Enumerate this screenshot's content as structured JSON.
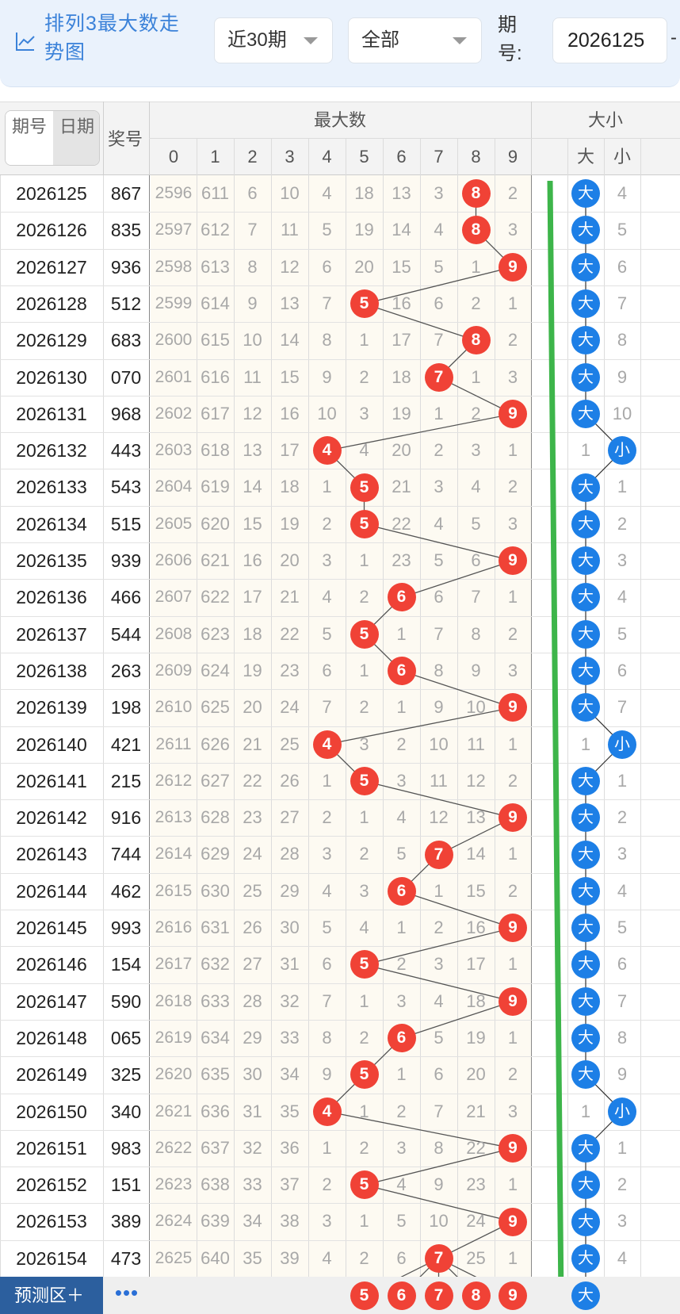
{
  "header": {
    "title": "排列3最大数走势图",
    "range_select": "近30期",
    "filter_select": "全部",
    "period_label": "期号:",
    "issue_value": "2026125",
    "range_separator": "-"
  },
  "table_header": {
    "sort_by_issue": "期号",
    "sort_by_date": "日期",
    "prize_col": "奖号",
    "max_group": "最大数",
    "max_digits": [
      "0",
      "1",
      "2",
      "3",
      "4",
      "5",
      "6",
      "7",
      "8",
      "9"
    ],
    "size_group": "大小",
    "size_cols": [
      "大",
      "小"
    ]
  },
  "rows": [
    {
      "issue": "2026125",
      "prize": "867",
      "max": 8,
      "miss": [
        2596,
        611,
        6,
        10,
        4,
        18,
        13,
        3,
        null,
        2
      ],
      "size": "大",
      "size_miss": 4
    },
    {
      "issue": "2026126",
      "prize": "835",
      "max": 8,
      "miss": [
        2597,
        612,
        7,
        11,
        5,
        19,
        14,
        4,
        null,
        3
      ],
      "size": "大",
      "size_miss": 5
    },
    {
      "issue": "2026127",
      "prize": "936",
      "max": 9,
      "miss": [
        2598,
        613,
        8,
        12,
        6,
        20,
        15,
        5,
        1,
        null
      ],
      "size": "大",
      "size_miss": 6
    },
    {
      "issue": "2026128",
      "prize": "512",
      "max": 5,
      "miss": [
        2599,
        614,
        9,
        13,
        7,
        null,
        16,
        6,
        2,
        1
      ],
      "size": "大",
      "size_miss": 7
    },
    {
      "issue": "2026129",
      "prize": "683",
      "max": 8,
      "miss": [
        2600,
        615,
        10,
        14,
        8,
        1,
        17,
        7,
        null,
        2
      ],
      "size": "大",
      "size_miss": 8
    },
    {
      "issue": "2026130",
      "prize": "070",
      "max": 7,
      "miss": [
        2601,
        616,
        11,
        15,
        9,
        2,
        18,
        null,
        1,
        3
      ],
      "size": "大",
      "size_miss": 9
    },
    {
      "issue": "2026131",
      "prize": "968",
      "max": 9,
      "miss": [
        2602,
        617,
        12,
        16,
        10,
        3,
        19,
        1,
        2,
        null
      ],
      "size": "大",
      "size_miss": 10
    },
    {
      "issue": "2026132",
      "prize": "443",
      "max": 4,
      "miss": [
        2603,
        618,
        13,
        17,
        null,
        4,
        20,
        2,
        3,
        1
      ],
      "size": "小",
      "size_miss": 1
    },
    {
      "issue": "2026133",
      "prize": "543",
      "max": 5,
      "miss": [
        2604,
        619,
        14,
        18,
        1,
        null,
        21,
        3,
        4,
        2
      ],
      "size": "大",
      "size_miss": 1
    },
    {
      "issue": "2026134",
      "prize": "515",
      "max": 5,
      "miss": [
        2605,
        620,
        15,
        19,
        2,
        null,
        22,
        4,
        5,
        3
      ],
      "size": "大",
      "size_miss": 2
    },
    {
      "issue": "2026135",
      "prize": "939",
      "max": 9,
      "miss": [
        2606,
        621,
        16,
        20,
        3,
        1,
        23,
        5,
        6,
        null
      ],
      "size": "大",
      "size_miss": 3
    },
    {
      "issue": "2026136",
      "prize": "466",
      "max": 6,
      "miss": [
        2607,
        622,
        17,
        21,
        4,
        2,
        null,
        6,
        7,
        1
      ],
      "size": "大",
      "size_miss": 4
    },
    {
      "issue": "2026137",
      "prize": "544",
      "max": 5,
      "miss": [
        2608,
        623,
        18,
        22,
        5,
        null,
        1,
        7,
        8,
        2
      ],
      "size": "大",
      "size_miss": 5
    },
    {
      "issue": "2026138",
      "prize": "263",
      "max": 6,
      "miss": [
        2609,
        624,
        19,
        23,
        6,
        1,
        null,
        8,
        9,
        3
      ],
      "size": "大",
      "size_miss": 6
    },
    {
      "issue": "2026139",
      "prize": "198",
      "max": 9,
      "miss": [
        2610,
        625,
        20,
        24,
        7,
        2,
        1,
        9,
        10,
        null
      ],
      "size": "大",
      "size_miss": 7
    },
    {
      "issue": "2026140",
      "prize": "421",
      "max": 4,
      "miss": [
        2611,
        626,
        21,
        25,
        null,
        3,
        2,
        10,
        11,
        1
      ],
      "size": "小",
      "size_miss": 1
    },
    {
      "issue": "2026141",
      "prize": "215",
      "max": 5,
      "miss": [
        2612,
        627,
        22,
        26,
        1,
        null,
        3,
        11,
        12,
        2
      ],
      "size": "大",
      "size_miss": 1
    },
    {
      "issue": "2026142",
      "prize": "916",
      "max": 9,
      "miss": [
        2613,
        628,
        23,
        27,
        2,
        1,
        4,
        12,
        13,
        null
      ],
      "size": "大",
      "size_miss": 2
    },
    {
      "issue": "2026143",
      "prize": "744",
      "max": 7,
      "miss": [
        2614,
        629,
        24,
        28,
        3,
        2,
        5,
        null,
        14,
        1
      ],
      "size": "大",
      "size_miss": 3
    },
    {
      "issue": "2026144",
      "prize": "462",
      "max": 6,
      "miss": [
        2615,
        630,
        25,
        29,
        4,
        3,
        null,
        1,
        15,
        2
      ],
      "size": "大",
      "size_miss": 4
    },
    {
      "issue": "2026145",
      "prize": "993",
      "max": 9,
      "miss": [
        2616,
        631,
        26,
        30,
        5,
        4,
        1,
        2,
        16,
        null
      ],
      "size": "大",
      "size_miss": 5
    },
    {
      "issue": "2026146",
      "prize": "154",
      "max": 5,
      "miss": [
        2617,
        632,
        27,
        31,
        6,
        null,
        2,
        3,
        17,
        1
      ],
      "size": "大",
      "size_miss": 6
    },
    {
      "issue": "2026147",
      "prize": "590",
      "max": 9,
      "miss": [
        2618,
        633,
        28,
        32,
        7,
        1,
        3,
        4,
        18,
        null
      ],
      "size": "大",
      "size_miss": 7
    },
    {
      "issue": "2026148",
      "prize": "065",
      "max": 6,
      "miss": [
        2619,
        634,
        29,
        33,
        8,
        2,
        null,
        5,
        19,
        1
      ],
      "size": "大",
      "size_miss": 8
    },
    {
      "issue": "2026149",
      "prize": "325",
      "max": 5,
      "miss": [
        2620,
        635,
        30,
        34,
        9,
        null,
        1,
        6,
        20,
        2
      ],
      "size": "大",
      "size_miss": 9
    },
    {
      "issue": "2026150",
      "prize": "340",
      "max": 4,
      "miss": [
        2621,
        636,
        31,
        35,
        null,
        1,
        2,
        7,
        21,
        3
      ],
      "size": "小",
      "size_miss": 1
    },
    {
      "issue": "2026151",
      "prize": "983",
      "max": 9,
      "miss": [
        2622,
        637,
        32,
        36,
        1,
        2,
        3,
        8,
        22,
        null
      ],
      "size": "大",
      "size_miss": 1
    },
    {
      "issue": "2026152",
      "prize": "151",
      "max": 5,
      "miss": [
        2623,
        638,
        33,
        37,
        2,
        null,
        4,
        9,
        23,
        1
      ],
      "size": "大",
      "size_miss": 2
    },
    {
      "issue": "2026153",
      "prize": "389",
      "max": 9,
      "miss": [
        2624,
        639,
        34,
        38,
        3,
        1,
        5,
        10,
        24,
        null
      ],
      "size": "大",
      "size_miss": 3
    },
    {
      "issue": "2026154",
      "prize": "473",
      "max": 7,
      "miss": [
        2625,
        640,
        35,
        39,
        4,
        2,
        6,
        null,
        25,
        1
      ],
      "size": "大",
      "size_miss": 4
    }
  ],
  "predict": {
    "label": "预测区＋",
    "more": "•••",
    "balls": [
      "5",
      "6",
      "7",
      "8",
      "9"
    ],
    "size_ball": "大"
  },
  "colors": {
    "ball_red": "#f04236",
    "ball_blue": "#1d7fe6",
    "arrow_green": "#3db54a",
    "title_blue": "#3b82d9"
  }
}
